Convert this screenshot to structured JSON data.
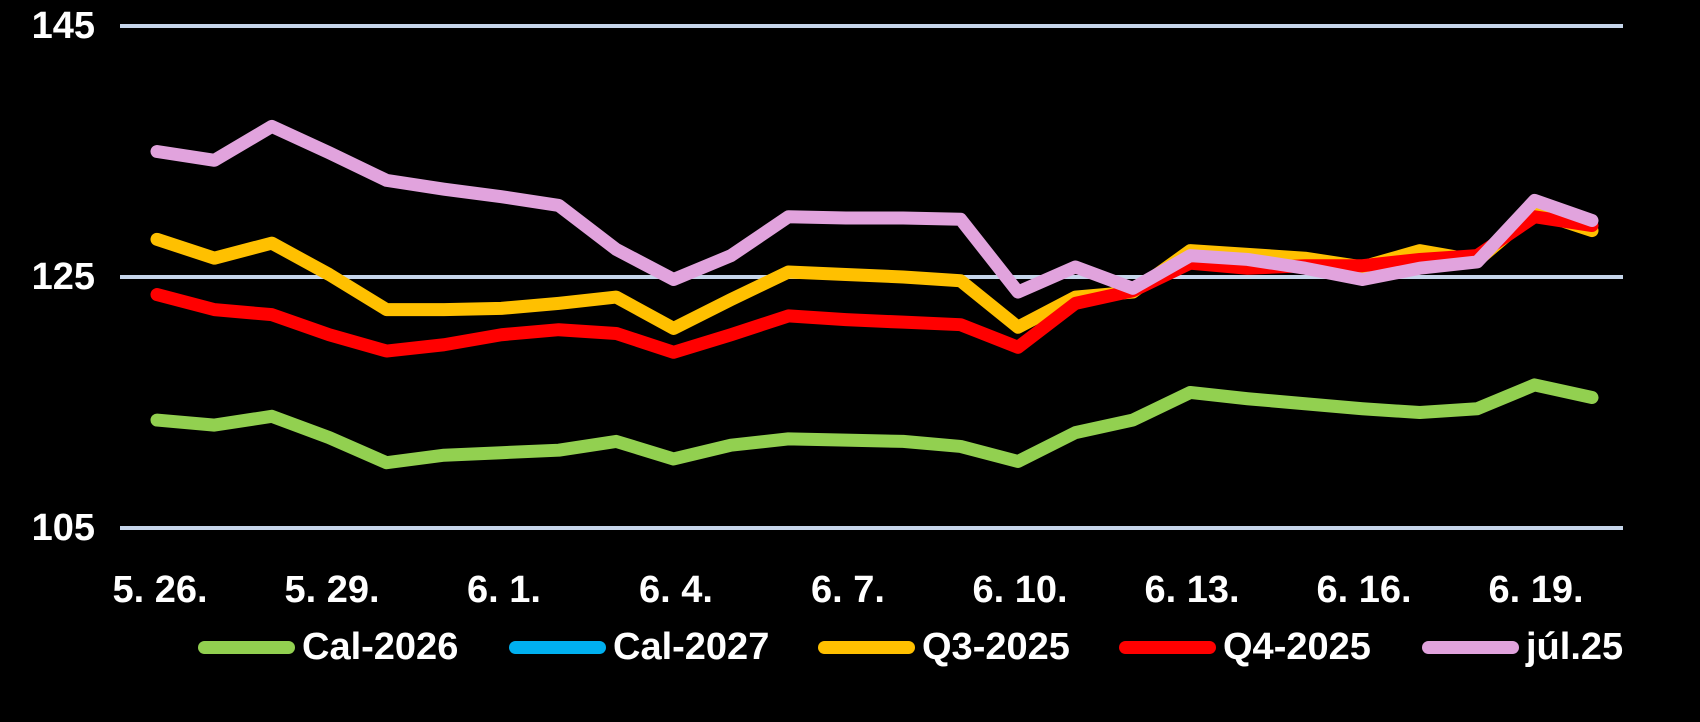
{
  "canvas": {
    "background": "#000000"
  },
  "chart_data": {
    "type": "line",
    "title": "",
    "xlabel": "",
    "ylabel": "",
    "ylim": [
      105,
      145
    ],
    "y_ticks": [
      145,
      125,
      105
    ],
    "y_tick_labels": [
      "145",
      "125",
      "105"
    ],
    "x_tick_labels": [
      "5. 26.",
      "5. 29.",
      "6. 1.",
      "6. 4.",
      "6. 7.",
      "6. 10.",
      "6. 13.",
      "6. 16.",
      "6. 19."
    ],
    "x": [
      "5.26",
      "5.27",
      "5.28",
      "5.29",
      "5.30",
      "5.31",
      "6.1",
      "6.2",
      "6.3",
      "6.4",
      "6.5",
      "6.6",
      "6.7",
      "6.8",
      "6.9",
      "6.10",
      "6.11",
      "6.12",
      "6.13",
      "6.14",
      "6.15",
      "6.16",
      "6.17",
      "6.18",
      "6.19",
      "6.20"
    ],
    "grid": "horizontal",
    "grid_color": "#C6D5EA",
    "text_color": "#FFFFFF",
    "legend_position": "bottom",
    "series": [
      {
        "name": "Cal-2026",
        "color": "#92D050",
        "values": [
          113.6,
          113.2,
          113.9,
          112.2,
          110.2,
          110.8,
          111.0,
          111.2,
          111.9,
          110.5,
          111.6,
          112.1,
          112.0,
          111.9,
          111.5,
          110.3,
          112.6,
          113.6,
          115.8,
          115.3,
          114.9,
          114.5,
          114.2,
          114.5,
          116.4,
          115.4
        ]
      },
      {
        "name": "Cal-2027",
        "color": "#00B0F0",
        "values": [],
        "note": "legend entry only - no data line visible in the plot area"
      },
      {
        "name": "Q3-2025",
        "color": "#FFC000",
        "values": [
          128.0,
          126.5,
          127.7,
          125.2,
          122.4,
          122.4,
          122.5,
          122.9,
          123.4,
          120.9,
          123.2,
          125.4,
          125.2,
          125.0,
          124.7,
          121.0,
          123.4,
          123.8,
          127.1,
          126.8,
          126.5,
          125.8,
          127.1,
          126.3,
          130.2,
          128.7
        ]
      },
      {
        "name": "Q4-2025",
        "color": "#FF0000",
        "values": [
          123.6,
          122.4,
          122.0,
          120.4,
          119.1,
          119.6,
          120.4,
          120.8,
          120.5,
          119.0,
          120.4,
          121.9,
          121.6,
          121.4,
          121.2,
          119.4,
          122.9,
          123.9,
          126.1,
          125.7,
          125.9,
          125.9,
          126.4,
          126.7,
          129.8,
          129.1
        ]
      },
      {
        "name": "júl.25",
        "color": "#E1A3DD",
        "values": [
          135.0,
          134.3,
          137.0,
          134.9,
          132.7,
          132.0,
          131.4,
          130.7,
          127.2,
          124.8,
          126.7,
          129.8,
          129.7,
          129.7,
          129.6,
          123.8,
          125.8,
          124.1,
          126.7,
          126.4,
          125.7,
          124.8,
          125.7,
          126.2,
          131.1,
          129.5
        ]
      }
    ]
  }
}
